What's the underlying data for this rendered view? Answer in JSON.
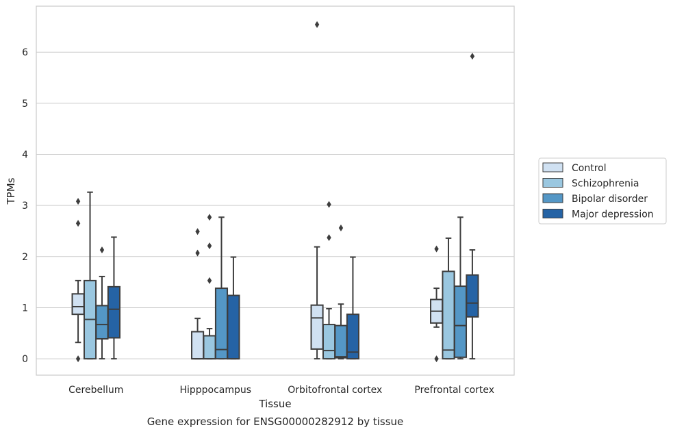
{
  "chart_data": {
    "type": "boxplot",
    "caption": "Gene expression for ENSG00000282912 by tissue",
    "xlabel": "Tissue",
    "ylabel": "TPMs",
    "ylim": [
      -0.32,
      6.9
    ],
    "yticks": [
      0,
      1,
      2,
      3,
      4,
      5,
      6
    ],
    "grid": true,
    "legend_position": "right",
    "categories": [
      "Cerebellum",
      "Hipppocampus",
      "Orbitofrontal cortex",
      "Prefrontal cortex"
    ],
    "series": [
      {
        "name": "Control",
        "color": "#d0e1f2",
        "boxes": [
          {
            "whislo": 0.32,
            "q1": 0.87,
            "med": 1.02,
            "q3": 1.27,
            "whishi": 1.53,
            "fliers": [
              3.08,
              2.65,
              0.0
            ]
          },
          {
            "whislo": 0.0,
            "q1": 0.0,
            "med": 0.0,
            "q3": 0.53,
            "whishi": 0.79,
            "fliers": [
              2.49,
              2.07
            ]
          },
          {
            "whislo": 0.0,
            "q1": 0.19,
            "med": 0.8,
            "q3": 1.05,
            "whishi": 2.19,
            "fliers": [
              6.54
            ]
          },
          {
            "whislo": 0.62,
            "q1": 0.7,
            "med": 0.93,
            "q3": 1.16,
            "whishi": 1.38,
            "fliers": [
              2.15,
              0.0
            ]
          }
        ]
      },
      {
        "name": "Schizophrenia",
        "color": "#9ac7e0",
        "boxes": [
          {
            "whislo": 0.0,
            "q1": 0.0,
            "med": 0.77,
            "q3": 1.53,
            "whishi": 3.26,
            "fliers": []
          },
          {
            "whislo": 0.0,
            "q1": 0.0,
            "med": 0.0,
            "q3": 0.45,
            "whishi": 0.59,
            "fliers": [
              2.77,
              2.21,
              1.53
            ]
          },
          {
            "whislo": 0.0,
            "q1": 0.0,
            "med": 0.16,
            "q3": 0.67,
            "whishi": 0.98,
            "fliers": [
              3.02,
              2.37
            ]
          },
          {
            "whislo": 0.0,
            "q1": 0.0,
            "med": 0.17,
            "q3": 1.71,
            "whishi": 2.36,
            "fliers": []
          }
        ]
      },
      {
        "name": "Bipolar disorder",
        "color": "#5497c6",
        "boxes": [
          {
            "whislo": 0.0,
            "q1": 0.39,
            "med": 0.67,
            "q3": 1.04,
            "whishi": 1.61,
            "fliers": [
              2.13
            ]
          },
          {
            "whislo": 0.0,
            "q1": 0.0,
            "med": 0.18,
            "q3": 1.38,
            "whishi": 2.77,
            "fliers": []
          },
          {
            "whislo": 0.0,
            "q1": 0.02,
            "med": 0.04,
            "q3": 0.65,
            "whishi": 1.07,
            "fliers": [
              2.56
            ]
          },
          {
            "whislo": 0.0,
            "q1": 0.03,
            "med": 0.65,
            "q3": 1.42,
            "whishi": 2.77,
            "fliers": []
          }
        ]
      },
      {
        "name": "Major depression",
        "color": "#2563a5",
        "boxes": [
          {
            "whislo": 0.0,
            "q1": 0.41,
            "med": 0.97,
            "q3": 1.41,
            "whishi": 2.38,
            "fliers": []
          },
          {
            "whislo": 0.0,
            "q1": 0.0,
            "med": 0.0,
            "q3": 1.24,
            "whishi": 1.99,
            "fliers": []
          },
          {
            "whislo": 0.0,
            "q1": 0.0,
            "med": 0.13,
            "q3": 0.87,
            "whishi": 1.99,
            "fliers": []
          },
          {
            "whislo": 0.0,
            "q1": 0.82,
            "med": 1.09,
            "q3": 1.64,
            "whishi": 2.13,
            "fliers": [
              5.92
            ]
          }
        ]
      }
    ]
  }
}
